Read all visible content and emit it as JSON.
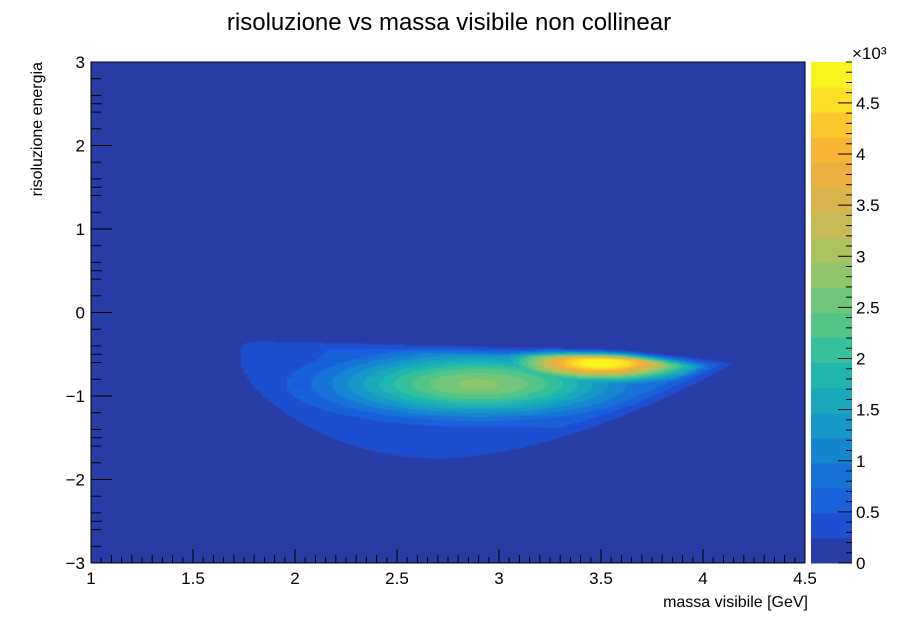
{
  "chart_data": {
    "type": "heatmap",
    "title": "risoluzione vs massa visibile non collinear",
    "xlabel": "massa visibile [GeV]",
    "ylabel": "risoluzione energia",
    "xlim": [
      1,
      4.5
    ],
    "ylim": [
      -3,
      3
    ],
    "x_ticks": [
      {
        "value": 1,
        "label": "1"
      },
      {
        "value": 1.5,
        "label": "1.5"
      },
      {
        "value": 2,
        "label": "2"
      },
      {
        "value": 2.5,
        "label": "2.5"
      },
      {
        "value": 3,
        "label": "3"
      },
      {
        "value": 3.5,
        "label": "3.5"
      },
      {
        "value": 4,
        "label": "4"
      },
      {
        "value": 4.5,
        "label": "4.5"
      }
    ],
    "y_ticks": [
      {
        "value": -3,
        "label": "−3"
      },
      {
        "value": -2,
        "label": "−2"
      },
      {
        "value": -1,
        "label": "−1"
      },
      {
        "value": 0,
        "label": "0"
      },
      {
        "value": 1,
        "label": "1"
      },
      {
        "value": 2,
        "label": "2"
      },
      {
        "value": 3,
        "label": "3"
      }
    ],
    "colorbar": {
      "min": 0,
      "max": 4.9,
      "multiplier_label": "×10³",
      "ticks": [
        {
          "value": 0,
          "label": "0"
        },
        {
          "value": 0.5,
          "label": "0.5"
        },
        {
          "value": 1,
          "label": "1"
        },
        {
          "value": 1.5,
          "label": "1.5"
        },
        {
          "value": 2,
          "label": "2"
        },
        {
          "value": 2.5,
          "label": "2.5"
        },
        {
          "value": 3,
          "label": "3"
        },
        {
          "value": 3.5,
          "label": "3.5"
        },
        {
          "value": 4,
          "label": "4"
        },
        {
          "value": 4.5,
          "label": "4.5"
        }
      ],
      "colors": [
        "#283ca6",
        "#1f4fd0",
        "#1a61dc",
        "#1573d8",
        "#1486d0",
        "#1799c7",
        "#1aa8bd",
        "#20b6af",
        "#36c09c",
        "#52c589",
        "#71c67a",
        "#8fc66c",
        "#acc25f",
        "#c6bb55",
        "#dab34c",
        "#ecaf40",
        "#f7b635",
        "#fbc82c",
        "#fbdf26",
        "#f9f41f"
      ]
    },
    "blob": {
      "x_range": [
        1.65,
        4.25
      ],
      "y_range": [
        -1.9,
        -0.25
      ],
      "peak": {
        "x": 3.5,
        "y": -0.6,
        "value": 4.9
      },
      "secondary_peak": {
        "x": 2.9,
        "y": -0.85,
        "value": 2.7
      }
    }
  }
}
